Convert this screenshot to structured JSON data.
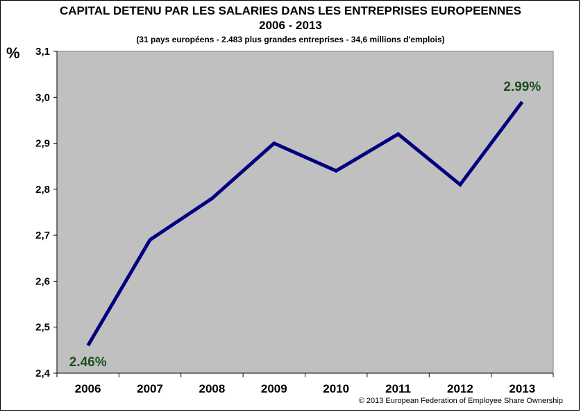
{
  "chart_data": {
    "type": "line",
    "title": "CAPITAL  DETENU PAR LES SALARIES DANS LES ENTREPRISES EUROPEENNES",
    "title_line2": "2006 - 2013",
    "subtitle": "(31 pays européens  - 2.483 plus grandes entreprises  - 34,6 millions d'emplois)",
    "ylabel": "%",
    "xlabel": "",
    "categories": [
      "2006",
      "2007",
      "2008",
      "2009",
      "2010",
      "2011",
      "2012",
      "2013"
    ],
    "series": [
      {
        "values": [
          2.46,
          2.69,
          2.78,
          2.9,
          2.84,
          2.92,
          2.81,
          2.99
        ]
      }
    ],
    "ylim": [
      2.4,
      3.1
    ],
    "yticks": [
      2.4,
      2.5,
      2.6,
      2.7,
      2.8,
      2.9,
      3.0,
      3.1
    ],
    "ytick_labels": [
      "2,4",
      "2,5",
      "2,6",
      "2,7",
      "2,8",
      "2,9",
      "3,0",
      "3,1"
    ],
    "annotations": [
      {
        "category": "2006",
        "text": "2.46%"
      },
      {
        "category": "2013",
        "text": "2.99%"
      }
    ],
    "grid": false,
    "plot_background": "#c0c0c0",
    "line_color": "#00007f",
    "label_color": "#1d4d1d",
    "copyright": "©  2013  European Federation  of  Employee Share Ownership"
  }
}
